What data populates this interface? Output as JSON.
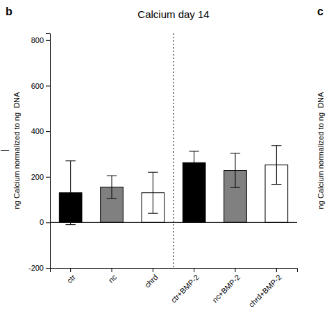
{
  "chart_data": {
    "type": "bar",
    "title": "Calcium day 14",
    "y_label": "ng Calcium normalized to ng  DNA",
    "annotations": [
      "b",
      "c",
      "—"
    ],
    "categories": [
      "ctr",
      "nc",
      "chrd",
      "ctr+BMP-2",
      "nc+BMP-2",
      "chrd+BMP-2"
    ],
    "values": [
      130,
      155,
      130,
      262,
      228,
      252
    ],
    "errors": [
      140,
      50,
      90,
      50,
      75,
      85
    ],
    "colors": [
      "#000000",
      "#808080",
      "#ffffff",
      "#000000",
      "#808080",
      "#ffffff"
    ],
    "ylim": [
      -200,
      830
    ],
    "yticks": [
      -200,
      0,
      200,
      400,
      600,
      800
    ],
    "grid": false
  }
}
